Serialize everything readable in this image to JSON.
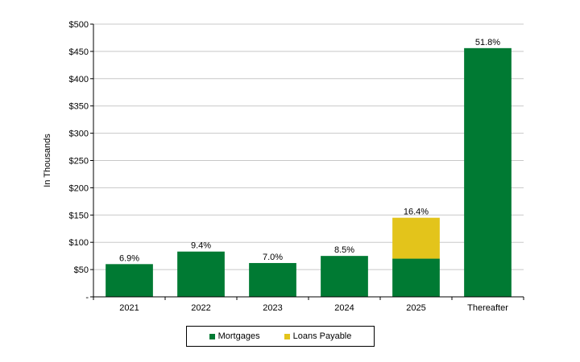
{
  "chart_data": {
    "type": "bar",
    "stacked": true,
    "ylabel": "In Thousands",
    "xlabel": "",
    "title": "",
    "ylim": [
      0,
      500
    ],
    "yticks": [
      0,
      50,
      100,
      150,
      200,
      250,
      300,
      350,
      400,
      450,
      500
    ],
    "ytick_labels": [
      "-",
      "$50",
      "$100",
      "$150",
      "$200",
      "$250",
      "$300",
      "$350",
      "$400",
      "$450",
      "$500"
    ],
    "categories": [
      "2021",
      "2022",
      "2023",
      "2024",
      "2025",
      "Thereafter"
    ],
    "series": [
      {
        "name": "Mortgages",
        "color": "#007a33",
        "values": [
          60,
          83,
          62,
          75,
          70,
          456
        ]
      },
      {
        "name": "Loans Payable",
        "color": "#e3c41b",
        "values": [
          0,
          0,
          0,
          0,
          75,
          0
        ]
      }
    ],
    "data_labels": [
      "6.9%",
      "9.4%",
      "7.0%",
      "8.5%",
      "16.4%",
      "51.8%"
    ],
    "grid": true,
    "legend_position": "bottom"
  }
}
